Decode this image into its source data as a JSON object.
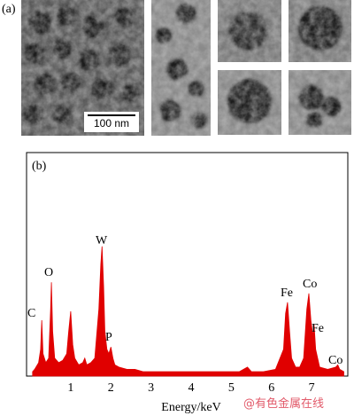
{
  "panel_a": {
    "label": "(a)",
    "scale_bar": "100 nm"
  },
  "chart_data": {
    "type": "area",
    "panel_label": "(b)",
    "x_label": "Energy/keV",
    "watermark": "@有色金属在线",
    "color": "#e00000",
    "x": [
      0.05,
      0.1,
      0.2,
      0.25,
      0.28,
      0.31,
      0.38,
      0.45,
      0.5,
      0.52,
      0.55,
      0.6,
      0.7,
      0.8,
      0.9,
      0.95,
      1.0,
      1.05,
      1.1,
      1.2,
      1.3,
      1.35,
      1.4,
      1.5,
      1.6,
      1.7,
      1.75,
      1.78,
      1.82,
      1.85,
      1.9,
      1.95,
      2.0,
      2.05,
      2.1,
      2.2,
      2.4,
      2.6,
      2.8,
      3.0,
      3.3,
      3.6,
      4.0,
      4.4,
      4.8,
      5.2,
      5.4,
      5.5,
      5.8,
      6.1,
      6.3,
      6.35,
      6.4,
      6.45,
      6.5,
      6.6,
      6.7,
      6.8,
      6.88,
      6.93,
      6.98,
      7.03,
      7.06,
      7.1,
      7.2,
      7.4,
      7.6,
      7.65,
      7.7,
      7.8
    ],
    "values": [
      2,
      3,
      6,
      12,
      25,
      10,
      6,
      8,
      30,
      42,
      20,
      8,
      6,
      7,
      10,
      20,
      29,
      14,
      8,
      5,
      6,
      8,
      5,
      6,
      8,
      30,
      50,
      58,
      40,
      20,
      12,
      10,
      13,
      8,
      5,
      4,
      3,
      3,
      2,
      2,
      2,
      2,
      2,
      2,
      2,
      2,
      4,
      2,
      2,
      3,
      12,
      28,
      33,
      20,
      8,
      4,
      4,
      8,
      30,
      37,
      25,
      18,
      23,
      12,
      4,
      3,
      4,
      5,
      3,
      2
    ],
    "xlim": [
      -0.1,
      7.9
    ],
    "ylim": [
      0,
      100
    ],
    "xticks": [
      1,
      2,
      3,
      4,
      5,
      6,
      7
    ],
    "annotations": [
      "C",
      "O",
      "W",
      "P",
      "Fe",
      "Co",
      "Fe",
      "Co"
    ]
  }
}
